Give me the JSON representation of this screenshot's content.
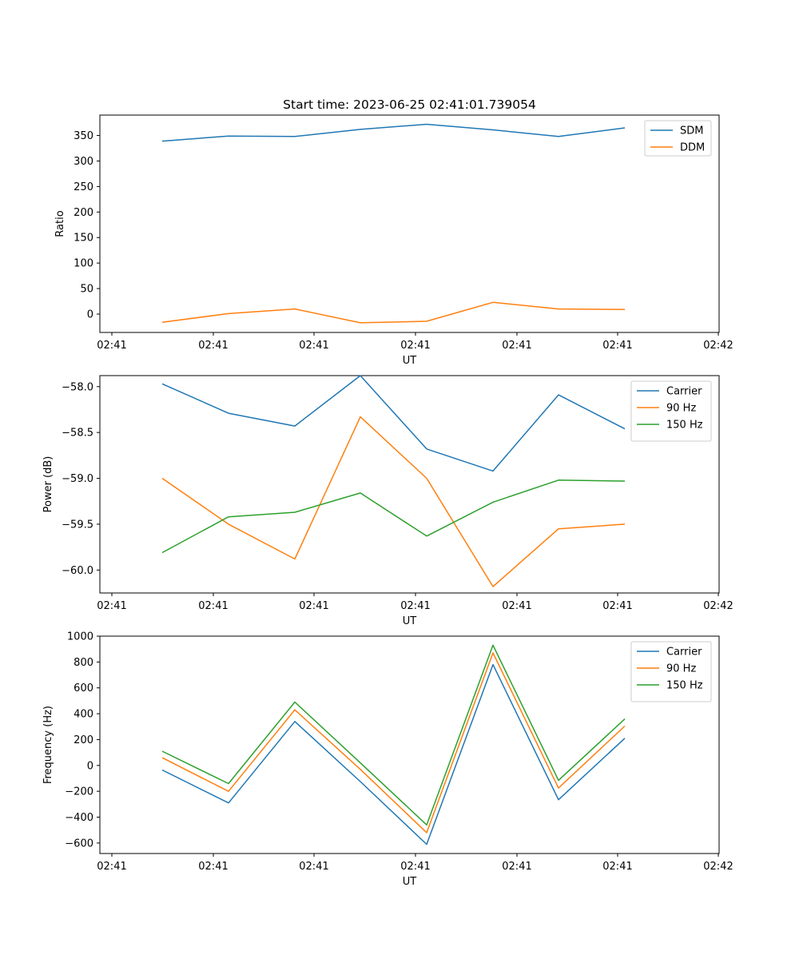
{
  "figure": {
    "title": "Start time: 2023-06-25 02:41:01.739054"
  },
  "chart_data": [
    {
      "type": "line",
      "title": "Start time: 2023-06-25 02:41:01.739054",
      "xlabel": "UT",
      "ylabel": "Ratio",
      "x_tick_labels": [
        "02:41",
        "02:41",
        "02:41",
        "02:41",
        "02:41",
        "02:41",
        "02:42"
      ],
      "y_ticks": [
        0,
        50,
        100,
        150,
        200,
        250,
        300,
        350
      ],
      "ylim": [
        -36,
        390
      ],
      "legend": "top-right",
      "grid": false,
      "series": [
        {
          "name": "SDM",
          "color": "#1f77b4",
          "values": [
            339,
            349,
            348,
            362,
            372,
            361,
            348,
            365
          ]
        },
        {
          "name": "DDM",
          "color": "#ff7f0e",
          "values": [
            -16,
            1,
            10,
            -17,
            -14,
            23,
            10,
            9
          ]
        }
      ]
    },
    {
      "type": "line",
      "xlabel": "UT",
      "ylabel": "Power (dB)",
      "x_tick_labels": [
        "02:41",
        "02:41",
        "02:41",
        "02:41",
        "02:41",
        "02:41",
        "02:42"
      ],
      "y_ticks": [
        -60.0,
        -59.5,
        -59.0,
        -58.5,
        -58.0
      ],
      "y_tick_labels": [
        "−60.0",
        "−59.5",
        "−59.0",
        "−58.5",
        "−58.0"
      ],
      "ylim": [
        -60.25,
        -57.88
      ],
      "legend": "top-right",
      "grid": false,
      "series": [
        {
          "name": "Carrier",
          "color": "#1f77b4",
          "values": [
            -57.97,
            -58.29,
            -58.43,
            -57.88,
            -58.68,
            -58.92,
            -58.09,
            -58.46
          ]
        },
        {
          "name": "90 Hz",
          "color": "#ff7f0e",
          "values": [
            -59.0,
            -59.5,
            -59.88,
            -58.33,
            -59.0,
            -60.18,
            -59.55,
            -59.5
          ]
        },
        {
          "name": "150 Hz",
          "color": "#2ca02c",
          "values": [
            -59.81,
            -59.42,
            -59.37,
            -59.16,
            -59.63,
            -59.26,
            -59.02,
            -59.03
          ]
        }
      ]
    },
    {
      "type": "line",
      "xlabel": "UT",
      "ylabel": "Frequency (Hz)",
      "x_tick_labels": [
        "02:41",
        "02:41",
        "02:41",
        "02:41",
        "02:41",
        "02:41",
        "02:42"
      ],
      "y_ticks": [
        -600,
        -400,
        -200,
        0,
        200,
        400,
        600,
        800,
        1000
      ],
      "y_tick_labels": [
        "−600",
        "−400",
        "−200",
        "0",
        "200",
        "400",
        "600",
        "800",
        "1000"
      ],
      "ylim": [
        -681,
        1000
      ],
      "legend": "top-right",
      "grid": false,
      "series": [
        {
          "name": "Carrier",
          "color": "#1f77b4",
          "values": [
            -35,
            -290,
            340,
            -125,
            -610,
            780,
            -265,
            210
          ]
        },
        {
          "name": "90 Hz",
          "color": "#ff7f0e",
          "values": [
            60,
            -200,
            430,
            -30,
            -520,
            870,
            -175,
            305
          ]
        },
        {
          "name": "150 Hz",
          "color": "#2ca02c",
          "values": [
            110,
            -140,
            490,
            20,
            -460,
            930,
            -115,
            360
          ]
        }
      ]
    }
  ]
}
